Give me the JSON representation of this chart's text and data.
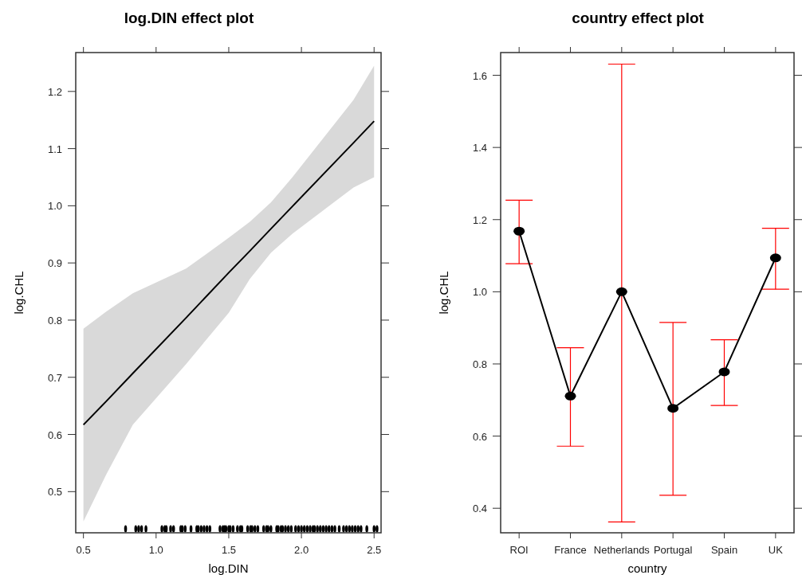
{
  "chart_data": [
    {
      "type": "line",
      "title": "log.DIN effect plot",
      "xlabel": "log.DIN",
      "ylabel": "log.CHL",
      "xlim": [
        0.447,
        2.548
      ],
      "ylim": [
        0.428,
        1.268
      ],
      "xticks": [
        0.5,
        {
          "value": 1,
          "label": "1.0"
        },
        1.5,
        {
          "value": 2,
          "label": "2.0"
        },
        2.5
      ],
      "yticks": [
        0.5,
        0.6,
        0.7,
        0.8,
        0.9,
        {
          "value": 1,
          "label": "1.0"
        },
        1.1,
        1.2
      ],
      "series": [
        {
          "color": "#000000",
          "x": [
            0.5,
            0.657,
            0.84,
            1.206,
            1.5,
            1.645,
            1.791,
            1.938,
            2.358,
            2.5
          ],
          "values": [
            0.617,
            0.658,
            0.707,
            0.804,
            0.883,
            0.921,
            0.96,
            0.999,
            1.11,
            1.148
          ],
          "lower": [
            0.448,
            0.53,
            0.617,
            0.723,
            0.813,
            0.872,
            0.918,
            0.951,
            1.032,
            1.05
          ],
          "upper": [
            0.785,
            0.815,
            0.847,
            0.89,
            0.944,
            0.972,
            1.006,
            1.05,
            1.185,
            1.245
          ]
        },
        {
          "type": "scatter",
          "color": "#000000",
          "x": [
            0.79,
            0.86,
            0.88,
            0.9,
            0.93,
            1.04,
            1.06,
            1.07,
            1.1,
            1.12,
            1.17,
            1.18,
            1.2,
            1.24,
            1.28,
            1.29,
            1.31,
            1.33,
            1.35,
            1.37,
            1.44,
            1.46,
            1.47,
            1.48,
            1.5,
            1.51,
            1.53,
            1.56,
            1.58,
            1.59,
            1.63,
            1.65,
            1.66,
            1.68,
            1.7,
            1.74,
            1.76,
            1.77,
            1.79,
            1.83,
            1.84,
            1.86,
            1.87,
            1.89,
            1.91,
            1.93,
            1.96,
            1.98,
            2.0,
            2.02,
            2.04,
            2.06,
            2.08,
            2.09,
            2.11,
            2.13,
            2.15,
            2.17,
            2.19,
            2.21,
            2.23,
            2.26,
            2.29,
            2.31,
            2.33,
            2.35,
            2.37,
            2.39,
            2.41,
            2.45,
            2.5,
            2.52
          ],
          "values": [
            0.435,
            0.435,
            0.435,
            0.435,
            0.435,
            0.435,
            0.435,
            0.435,
            0.435,
            0.435,
            0.435,
            0.435,
            0.435,
            0.435,
            0.435,
            0.435,
            0.435,
            0.435,
            0.435,
            0.435,
            0.435,
            0.435,
            0.435,
            0.435,
            0.435,
            0.435,
            0.435,
            0.435,
            0.435,
            0.435,
            0.435,
            0.435,
            0.435,
            0.435,
            0.435,
            0.435,
            0.435,
            0.435,
            0.435,
            0.435,
            0.435,
            0.435,
            0.435,
            0.435,
            0.435,
            0.435,
            0.435,
            0.435,
            0.435,
            0.435,
            0.435,
            0.435,
            0.435,
            0.435,
            0.435,
            0.435,
            0.435,
            0.435,
            0.435,
            0.435,
            0.435,
            0.435,
            0.435,
            0.435,
            0.435,
            0.435,
            0.435,
            0.435,
            0.435,
            0.435,
            0.435,
            0.435
          ]
        }
      ]
    },
    {
      "type": "line",
      "title": "country effect plot",
      "xlabel": "country",
      "ylabel": "log.CHL",
      "ylim": [
        0.332,
        1.663
      ],
      "yticks": [
        0.4,
        0.6,
        0.8,
        {
          "value": 1,
          "label": "1.0"
        },
        1.2,
        1.4,
        1.6
      ],
      "marker": "circle",
      "color": "#000000",
      "categories": [
        "ROI",
        "France",
        "Netherlands",
        "Portugal",
        "Spain",
        "UK"
      ],
      "values": [
        1.168,
        0.711,
        1.0,
        0.677,
        0.778,
        1.094
      ],
      "errors": [
        [
          1.078,
          1.254
        ],
        [
          0.572,
          0.845
        ],
        [
          0.362,
          1.631
        ],
        [
          0.436,
          0.915
        ],
        [
          0.685,
          0.867
        ],
        [
          1.007,
          1.176
        ]
      ]
    }
  ]
}
